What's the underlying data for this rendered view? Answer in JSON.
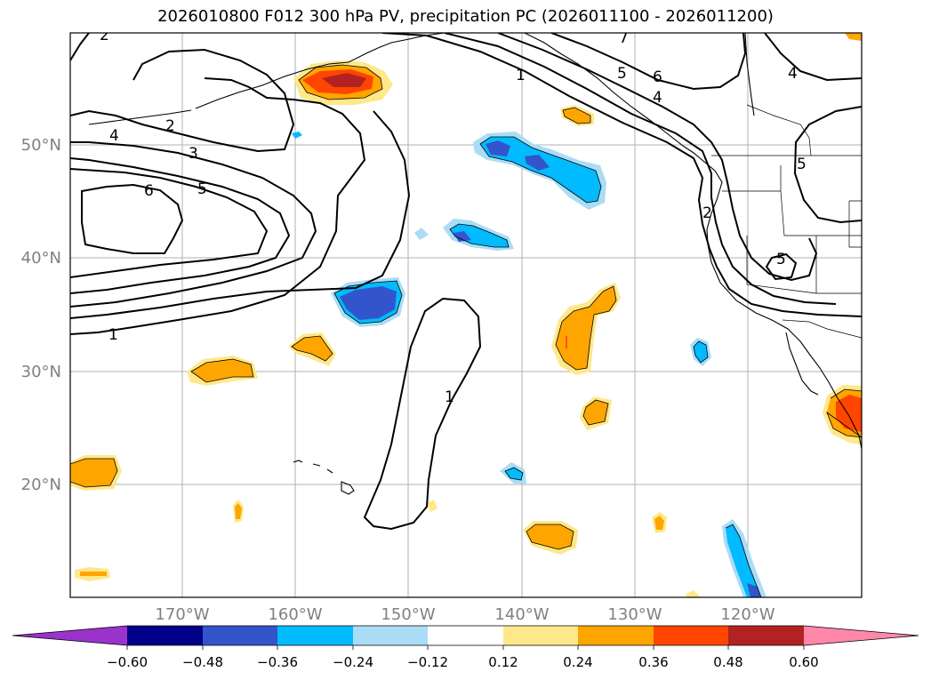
{
  "title": "2026010800 F012 300 hPa PV, precipitation PC (2026011100 - 2026011200)",
  "map": {
    "lat_labels": [
      "50°N",
      "40°N",
      "30°N",
      "20°N"
    ],
    "lon_labels": [
      "170°W",
      "160°W",
      "150°W",
      "140°W",
      "130°W",
      "120°W"
    ],
    "pv_contour_labels": [
      "2",
      "4",
      "2",
      "3",
      "5",
      "6",
      "1",
      "1",
      "5",
      "6",
      "4",
      "4",
      "5",
      "2",
      "5",
      "1",
      "7"
    ],
    "grid_color": "#b0b0b0",
    "label_color": "#808080"
  },
  "colorbar": {
    "ticks": [
      "−0.60",
      "−0.48",
      "−0.36",
      "−0.24",
      "−0.12",
      "0.12",
      "0.24",
      "0.36",
      "0.48",
      "0.60"
    ],
    "colors": [
      "#9933cc",
      "#000088",
      "#3355cc",
      "#00bbff",
      "#aaddf5",
      "#ffffff",
      "#ffe88a",
      "#ffa500",
      "#ff4500",
      "#b22222",
      "#ff88aa"
    ]
  }
}
